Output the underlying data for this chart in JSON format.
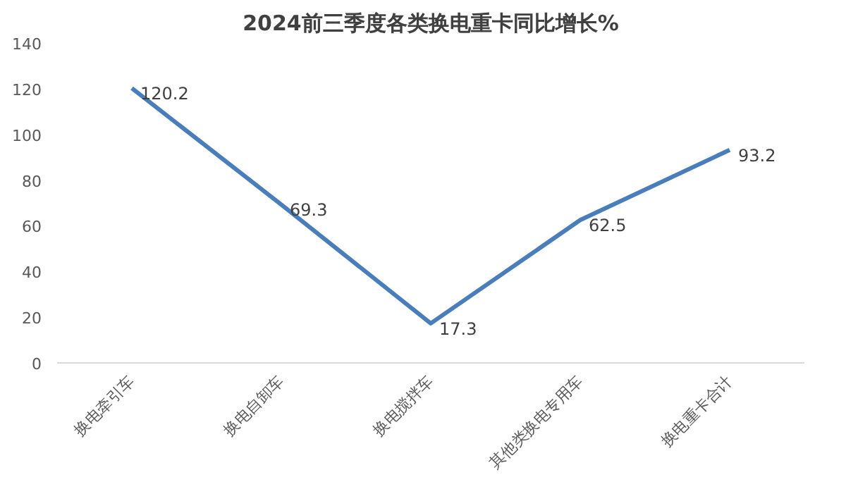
{
  "chart_data": {
    "type": "line",
    "title": "2024前三季度各类换电重卡同比增长%",
    "categories": [
      "换电牵引车",
      "换电自卸车",
      "换电搅拌车",
      "其他类换电专用车",
      "换电重卡合计"
    ],
    "series": [
      {
        "color": "#4a7ebb",
        "values": [
          120.2,
          69.3,
          17.3,
          62.5,
          93.2
        ]
      }
    ],
    "ylim": [
      0,
      140
    ],
    "yticks": [
      0,
      20,
      40,
      60,
      80,
      100,
      120,
      140
    ],
    "data_labels": true,
    "grid": false,
    "marker": "none",
    "line_style": "solid"
  }
}
